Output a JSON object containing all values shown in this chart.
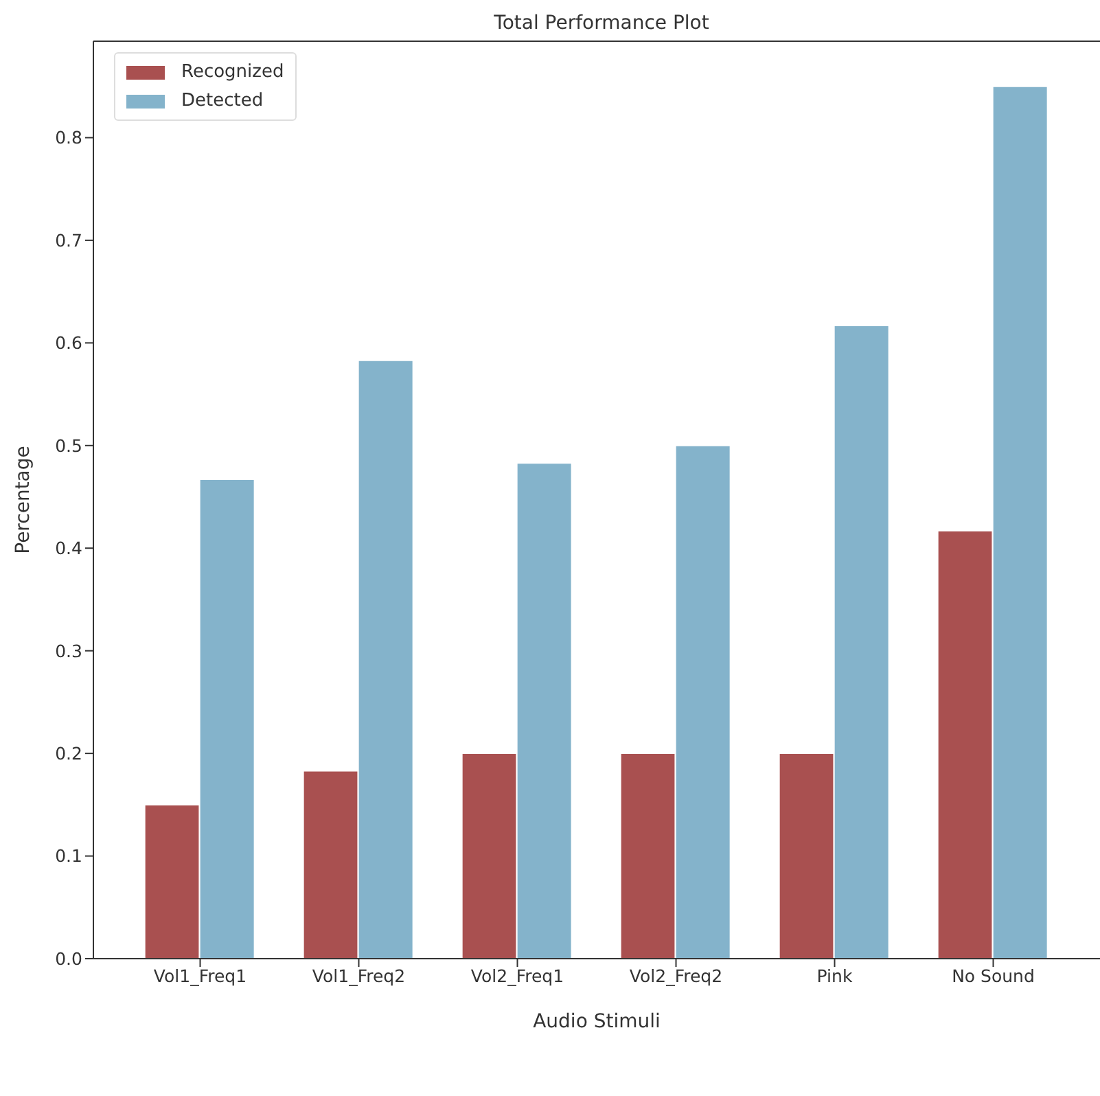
{
  "chart_data": {
    "type": "bar",
    "title": "Total Performance Plot",
    "xlabel": "Audio Stimuli",
    "ylabel": "Percentage",
    "categories": [
      "Vol1_Freq1",
      "Vol1_Freq2",
      "Vol2_Freq1",
      "Vol2_Freq2",
      "Pink",
      "No Sound"
    ],
    "series": [
      {
        "name": "Recognized",
        "color": "#a95050",
        "values": [
          0.15,
          0.183,
          0.2,
          0.2,
          0.2,
          0.417
        ]
      },
      {
        "name": "Detected",
        "color": "#84b3cb",
        "values": [
          0.467,
          0.583,
          0.483,
          0.5,
          0.617,
          0.85
        ]
      }
    ],
    "ylim": [
      0,
      0.894
    ],
    "yticks": [
      {
        "value": 0,
        "label": "0.0"
      },
      0.1,
      0.2,
      0.3,
      0.4,
      0.5,
      0.6,
      0.7,
      0.8
    ],
    "grid": false,
    "legend": "top left"
  }
}
